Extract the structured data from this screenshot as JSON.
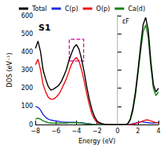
{
  "chart_data": {
    "type": "line",
    "title": "S1",
    "x_label": "Energy (eV)",
    "y_label": "DOS (eV⁻¹)",
    "x": [
      -8,
      -7.75,
      -7.5,
      -7.25,
      -7,
      -6.75,
      -6.5,
      -6.25,
      -6,
      -5.75,
      -5.5,
      -5.25,
      -5,
      -4.75,
      -4.5,
      -4.25,
      -4,
      -3.75,
      -3.5,
      -3.25,
      -3,
      -2.75,
      -2.5,
      -2.25,
      -2,
      -1.75,
      -1.5,
      -1.25,
      -1,
      -0.75,
      -0.5,
      -0.25,
      0,
      0.25,
      0.5,
      0.75,
      1,
      1.25,
      1.5,
      1.75,
      2,
      2.25,
      2.5,
      2.75,
      3,
      3.25,
      3.5,
      3.75,
      4
    ],
    "series": [
      {
        "name": "Total",
        "color": "#000000",
        "values": [
          420,
          460,
          400,
          300,
          250,
          210,
          190,
          195,
          205,
          215,
          235,
          265,
          300,
          350,
          390,
          425,
          440,
          415,
          360,
          290,
          210,
          140,
          85,
          45,
          20,
          10,
          5,
          2,
          0,
          0,
          0,
          0,
          0,
          0,
          0,
          0,
          5,
          30,
          90,
          180,
          300,
          430,
          550,
          590,
          520,
          350,
          220,
          180,
          200
        ]
      },
      {
        "name": "C(p)",
        "color": "#1f2fe0",
        "values": [
          100,
          95,
          80,
          55,
          40,
          30,
          25,
          22,
          20,
          18,
          15,
          14,
          12,
          12,
          12,
          12,
          12,
          10,
          10,
          8,
          6,
          5,
          3,
          2,
          1,
          1,
          0,
          0,
          0,
          0,
          0,
          0,
          0,
          0,
          0,
          0,
          0,
          2,
          5,
          8,
          12,
          15,
          15,
          12,
          10,
          8,
          8,
          10,
          12
        ]
      },
      {
        "name": "O(p)",
        "color": "#ee1111",
        "values": [
          330,
          360,
          300,
          220,
          180,
          150,
          140,
          140,
          150,
          165,
          190,
          220,
          250,
          290,
          330,
          355,
          370,
          350,
          300,
          240,
          170,
          110,
          60,
          30,
          12,
          5,
          2,
          1,
          0,
          0,
          0,
          0,
          0,
          0,
          0,
          0,
          0,
          0,
          2,
          5,
          10,
          15,
          20,
          25,
          25,
          20,
          15,
          10,
          10
        ]
      },
      {
        "name": "Ca(d)",
        "color": "#1a7f1a",
        "values": [
          30,
          35,
          30,
          20,
          15,
          10,
          8,
          8,
          8,
          8,
          8,
          8,
          8,
          10,
          10,
          10,
          10,
          10,
          8,
          6,
          5,
          3,
          2,
          1,
          0,
          0,
          0,
          0,
          0,
          0,
          0,
          0,
          0,
          0,
          0,
          0,
          3,
          25,
          75,
          160,
          280,
          400,
          510,
          550,
          480,
          320,
          200,
          160,
          180
        ]
      }
    ],
    "xlim": [
      -8,
      4
    ],
    "xticks": [
      {
        "value": -8,
        "label": "−8"
      },
      {
        "value": -6,
        "label": "−6"
      },
      {
        "value": -4,
        "label": "−4"
      },
      {
        "value": -2,
        "label": "−2"
      },
      0,
      2,
      4
    ],
    "ylim": [
      0,
      600
    ],
    "yticks": [
      0,
      100,
      200,
      300,
      400,
      500,
      600
    ],
    "legend": "top",
    "fermi_level": {
      "x": 0,
      "label": "εF",
      "color": "#8fd18f"
    },
    "highlight": {
      "xrange": [
        -4.7,
        -3.3
      ],
      "yrange": [
        350,
        470
      ],
      "color": "#cc0099"
    }
  }
}
